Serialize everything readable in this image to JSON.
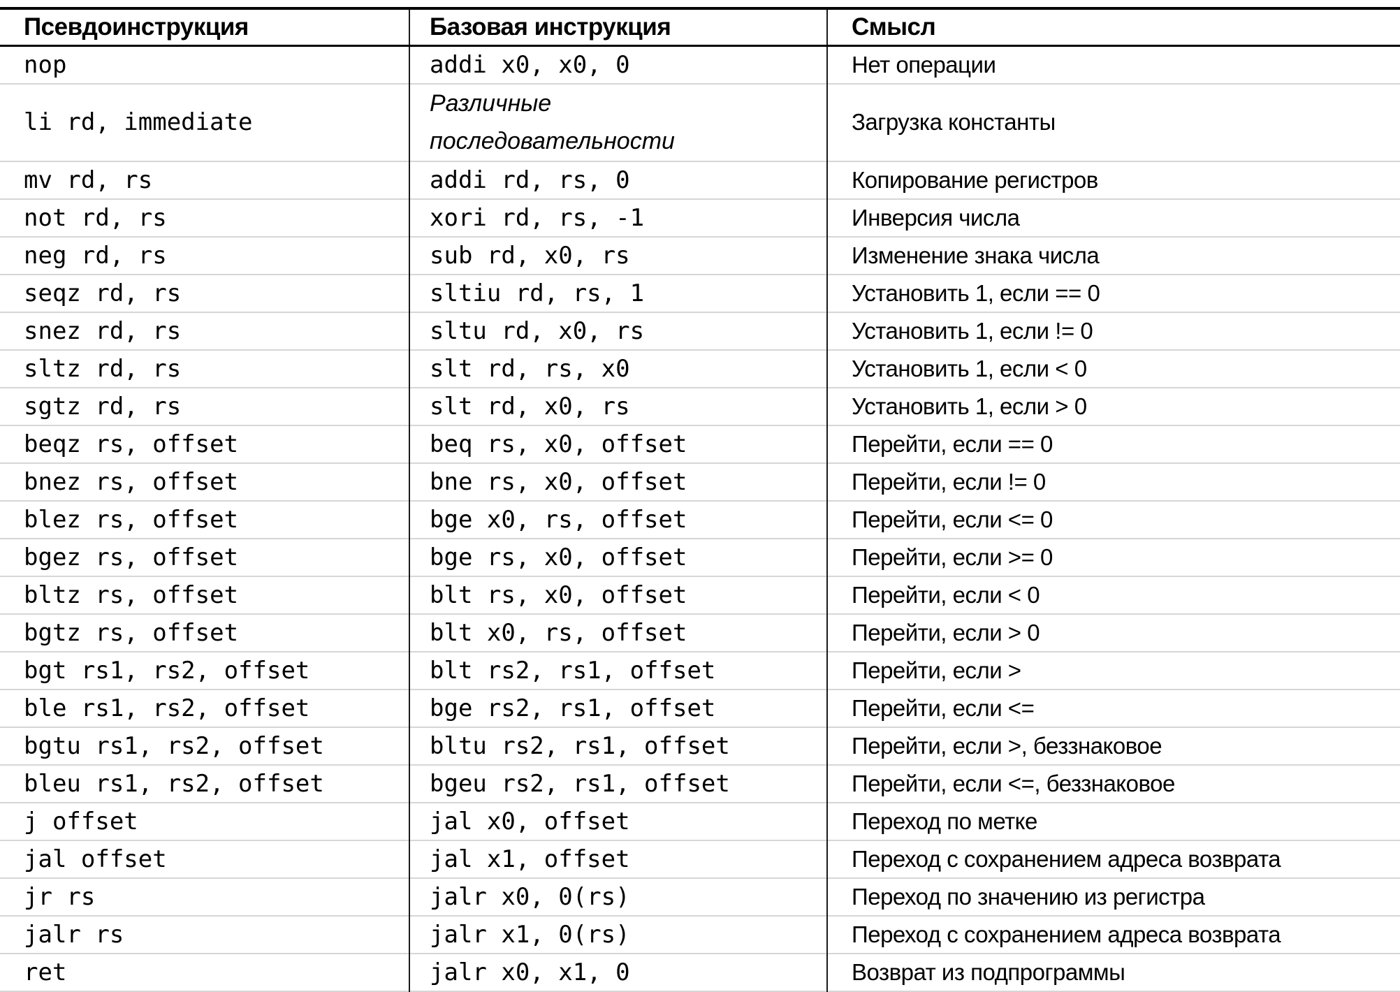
{
  "colors": {
    "background": "#ffffff",
    "text": "#000000",
    "heavy_rule": "#000000",
    "column_divider": "#1a1a1a",
    "row_separator": "#d6d6d6"
  },
  "table": {
    "headers": {
      "pseudo": "Псевдоинструкция",
      "base": "Базовая инструкция",
      "meaning": "Смысл"
    },
    "rows": [
      {
        "pseudo": "nop",
        "base": "addi x0, x0, 0",
        "base_italic": false,
        "double": false,
        "meaning": "Нет операции"
      },
      {
        "pseudo": "li rd, immediate",
        "base": "Различные\nпоследовательности",
        "base_italic": true,
        "double": true,
        "meaning": "Загрузка константы"
      },
      {
        "pseudo": "mv rd, rs",
        "base": "addi rd, rs, 0",
        "base_italic": false,
        "double": false,
        "meaning": "Копирование регистров"
      },
      {
        "pseudo": "not rd, rs",
        "base": "xori rd, rs, -1",
        "base_italic": false,
        "double": false,
        "meaning": "Инверсия числа"
      },
      {
        "pseudo": "neg rd, rs",
        "base": "sub rd, x0, rs",
        "base_italic": false,
        "double": false,
        "meaning": "Изменение знака числа"
      },
      {
        "pseudo": "seqz rd, rs",
        "base": "sltiu rd, rs, 1",
        "base_italic": false,
        "double": false,
        "meaning": "Установить 1, если == 0"
      },
      {
        "pseudo": "snez rd, rs",
        "base": "sltu rd, x0, rs",
        "base_italic": false,
        "double": false,
        "meaning": "Установить 1, если != 0"
      },
      {
        "pseudo": "sltz rd, rs",
        "base": "slt rd, rs, x0",
        "base_italic": false,
        "double": false,
        "meaning": "Установить 1, если < 0"
      },
      {
        "pseudo": "sgtz rd, rs",
        "base": "slt rd, x0, rs",
        "base_italic": false,
        "double": false,
        "meaning": "Установить 1, если > 0"
      },
      {
        "pseudo": "beqz rs, offset",
        "base": "beq rs, x0, offset",
        "base_italic": false,
        "double": false,
        "meaning": "Перейти, если == 0"
      },
      {
        "pseudo": "bnez rs, offset",
        "base": "bne rs, x0, offset",
        "base_italic": false,
        "double": false,
        "meaning": "Перейти, если != 0"
      },
      {
        "pseudo": "blez rs, offset",
        "base": "bge x0, rs, offset",
        "base_italic": false,
        "double": false,
        "meaning": "Перейти, если <= 0"
      },
      {
        "pseudo": "bgez rs, offset",
        "base": "bge rs, x0, offset",
        "base_italic": false,
        "double": false,
        "meaning": "Перейти, если >= 0"
      },
      {
        "pseudo": "bltz rs, offset",
        "base": "blt rs, x0, offset",
        "base_italic": false,
        "double": false,
        "meaning": "Перейти, если < 0"
      },
      {
        "pseudo": "bgtz rs, offset",
        "base": "blt x0, rs, offset",
        "base_italic": false,
        "double": false,
        "meaning": "Перейти, если > 0"
      },
      {
        "pseudo": "bgt rs1, rs2, offset",
        "base": "blt rs2, rs1, offset",
        "base_italic": false,
        "double": false,
        "meaning": "Перейти, если >"
      },
      {
        "pseudo": "ble rs1, rs2, offset",
        "base": "bge rs2, rs1, offset",
        "base_italic": false,
        "double": false,
        "meaning": "Перейти, если <="
      },
      {
        "pseudo": "bgtu rs1, rs2, offset",
        "base": "bltu rs2, rs1, offset",
        "base_italic": false,
        "double": false,
        "meaning": "Перейти, если >, беззнаковое"
      },
      {
        "pseudo": "bleu rs1, rs2, offset",
        "base": "bgeu rs2, rs1, offset",
        "base_italic": false,
        "double": false,
        "meaning": "Перейти, если <=, беззнаковое"
      },
      {
        "pseudo": "j offset",
        "base": "jal x0, offset",
        "base_italic": false,
        "double": false,
        "meaning": "Переход по метке"
      },
      {
        "pseudo": "jal offset",
        "base": "jal x1, offset",
        "base_italic": false,
        "double": false,
        "meaning": "Переход с сохранением адреса возврата"
      },
      {
        "pseudo": "jr rs",
        "base": "jalr x0, 0(rs)",
        "base_italic": false,
        "double": false,
        "meaning": "Переход по значению из регистра"
      },
      {
        "pseudo": "jalr rs",
        "base": "jalr x1, 0(rs)",
        "base_italic": false,
        "double": false,
        "meaning": "Переход с сохранением адреса возврата"
      },
      {
        "pseudo": "ret",
        "base": "jalr x0, x1, 0",
        "base_italic": false,
        "double": false,
        "meaning": "Возврат из подпрограммы"
      }
    ]
  }
}
